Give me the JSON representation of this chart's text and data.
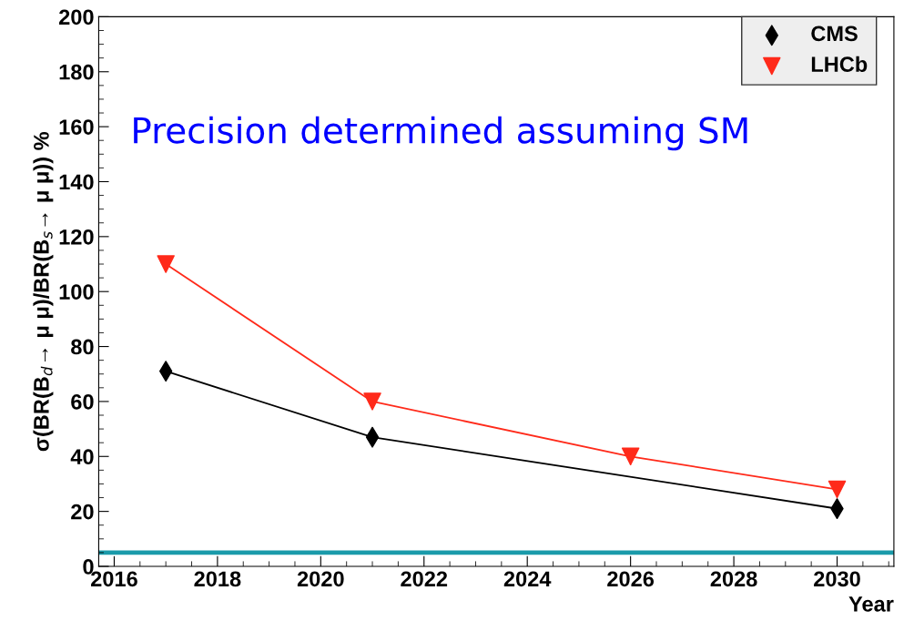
{
  "chart_data": {
    "type": "line",
    "ylabel": "σ(BR(B$_{d}$→ μ μ)/BR(B$_{s}$→ μ μ)) %",
    "xlabel": "Year",
    "annotations": [
      "Precision determined assuming SM"
    ],
    "series": [
      {
        "name": "CMS",
        "color": "#000000",
        "marker": "diamond",
        "x": [
          2017,
          2021,
          2030
        ],
        "values": [
          71,
          47,
          21
        ]
      },
      {
        "name": "LHCb",
        "color": "#ff2a1a",
        "marker": "triangle",
        "x": [
          2017,
          2021,
          2026,
          2030
        ],
        "values": [
          110,
          60,
          40,
          28
        ]
      }
    ],
    "ref_lines": [
      {
        "axis": "y",
        "value": 5,
        "color": "#1a9aaa"
      }
    ],
    "xlim": [
      2015.7,
      2031.1
    ],
    "xticks": [
      2016,
      2018,
      2020,
      2022,
      2024,
      2026,
      2028,
      2030
    ],
    "ylim": [
      0,
      200
    ],
    "yticks": [
      0,
      20,
      40,
      60,
      80,
      100,
      120,
      140,
      160,
      180,
      200
    ],
    "legend": "top right",
    "grid": false
  }
}
